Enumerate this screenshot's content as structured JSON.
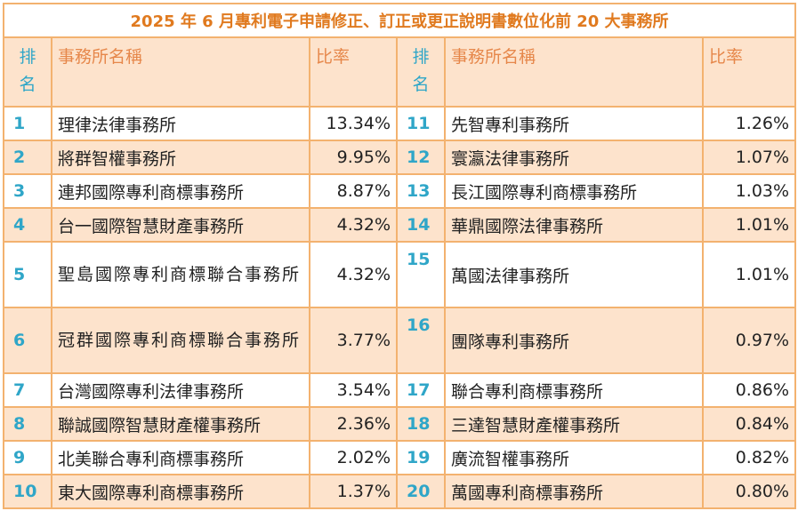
{
  "title": "2025 年 6 月專利電子申請修正、訂正或更正說明書數位化前 20 大事務所",
  "headers": {
    "rank_line1": "排",
    "rank_line2": "名",
    "name": "事務所名稱",
    "ratio": "比率"
  },
  "rows": [
    {
      "left": {
        "rank": "1",
        "name": "理律法律事務所",
        "ratio": "13.34%"
      },
      "right": {
        "rank": "11",
        "name": "先智專利事務所",
        "ratio": "1.26%"
      }
    },
    {
      "left": {
        "rank": "2",
        "name": "將群智權事務所",
        "ratio": "9.95%"
      },
      "right": {
        "rank": "12",
        "name": "寰瀛法律事務所",
        "ratio": "1.07%"
      }
    },
    {
      "left": {
        "rank": "3",
        "name": "連邦國際專利商標事務所",
        "ratio": "8.87%"
      },
      "right": {
        "rank": "13",
        "name": "長江國際專利商標事務所",
        "ratio": "1.03%"
      }
    },
    {
      "left": {
        "rank": "4",
        "name": "台一國際智慧財產事務所",
        "ratio": "4.32%"
      },
      "right": {
        "rank": "14",
        "name": "華鼎國際法律事務所",
        "ratio": "1.01%"
      }
    },
    {
      "left": {
        "rank": "5",
        "name": "聖島國際專利商標聯合事務所",
        "ratio": "4.32%"
      },
      "right": {
        "rank": "15",
        "name": "萬國法律事務所",
        "ratio": "1.01%"
      }
    },
    {
      "left": {
        "rank": "6",
        "name": "冠群國際專利商標聯合事務所",
        "ratio": "3.77%"
      },
      "right": {
        "rank": "16",
        "name": "團隊專利事務所",
        "ratio": "0.97%"
      }
    },
    {
      "left": {
        "rank": "7",
        "name": "台灣國際專利法律事務所",
        "ratio": "3.54%"
      },
      "right": {
        "rank": "17",
        "name": "聯合專利商標事務所",
        "ratio": "0.86%"
      }
    },
    {
      "left": {
        "rank": "8",
        "name": "聯誠國際智慧財產權事務所",
        "ratio": "2.36%"
      },
      "right": {
        "rank": "18",
        "name": "三達智慧財產權事務所",
        "ratio": "0.84%"
      }
    },
    {
      "left": {
        "rank": "9",
        "name": "北美聯合專利商標事務所",
        "ratio": "2.02%"
      },
      "right": {
        "rank": "19",
        "name": "廣流智權事務所",
        "ratio": "0.82%"
      }
    },
    {
      "left": {
        "rank": "10",
        "name": "東大國際專利商標事務所",
        "ratio": "1.37%"
      },
      "right": {
        "rank": "20",
        "name": "萬國專利商標事務所",
        "ratio": "0.80%"
      }
    }
  ]
}
